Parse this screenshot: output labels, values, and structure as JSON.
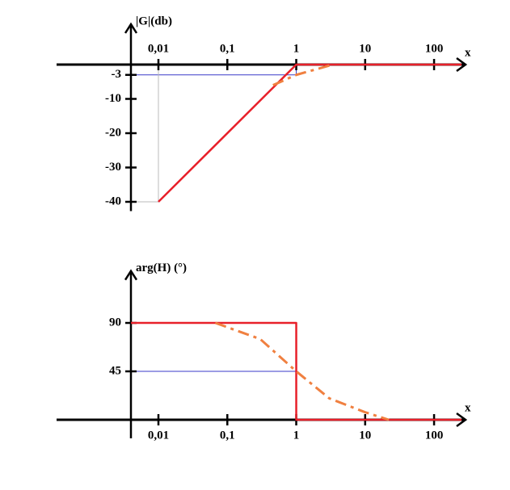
{
  "chart_data": [
    {
      "type": "line",
      "y_title": "|G|(db)",
      "x_title": "x",
      "log_x": true,
      "xtick_side": "top",
      "xlim": [
        0.0004,
        250
      ],
      "ylim": [
        -42,
        12
      ],
      "xticks": [
        {
          "value": 0.01,
          "label": "0,01"
        },
        {
          "value": 0.1,
          "label": "0,1"
        },
        1,
        10,
        100
      ],
      "yticks": [
        -3,
        -10,
        -20,
        -30,
        -40
      ],
      "guides": [
        {
          "x": 1,
          "y": -3,
          "color": "#3a3ac8"
        },
        {
          "x": 0.01,
          "y": -40,
          "color": "#bbbbbb"
        }
      ],
      "series": [
        {
          "color": "#e8202a",
          "dash": false,
          "x": [
            0.01,
            1,
            250
          ],
          "values": [
            -40,
            0,
            0
          ]
        },
        {
          "color": "#f08040",
          "dash": true,
          "x": [
            0.46,
            1,
            3.4
          ],
          "values": [
            -6,
            -3,
            0
          ]
        }
      ]
    },
    {
      "type": "line",
      "y_title": "arg(H) (°)",
      "x_title": "x",
      "log_x": true,
      "xtick_side": "bottom",
      "xlim": [
        0.0004,
        250
      ],
      "ylim": [
        -15,
        139
      ],
      "xticks": [
        {
          "value": 0.01,
          "label": "0,01"
        },
        {
          "value": 0.1,
          "label": "0,1"
        },
        1,
        10,
        100
      ],
      "yticks": [
        90,
        45
      ],
      "guides": [
        {
          "x": 1,
          "y": 45,
          "color": "#3a3ac8"
        }
      ],
      "series": [
        {
          "color": "#e8202a",
          "dash": false,
          "x": [
            0.004,
            1,
            1,
            250
          ],
          "values": [
            90,
            90,
            0,
            0
          ]
        },
        {
          "color": "#f08040",
          "dash": true,
          "x": [
            0.067,
            0.3,
            1,
            3,
            10,
            22
          ],
          "values": [
            90,
            75,
            45,
            20,
            7,
            0
          ]
        }
      ]
    }
  ]
}
